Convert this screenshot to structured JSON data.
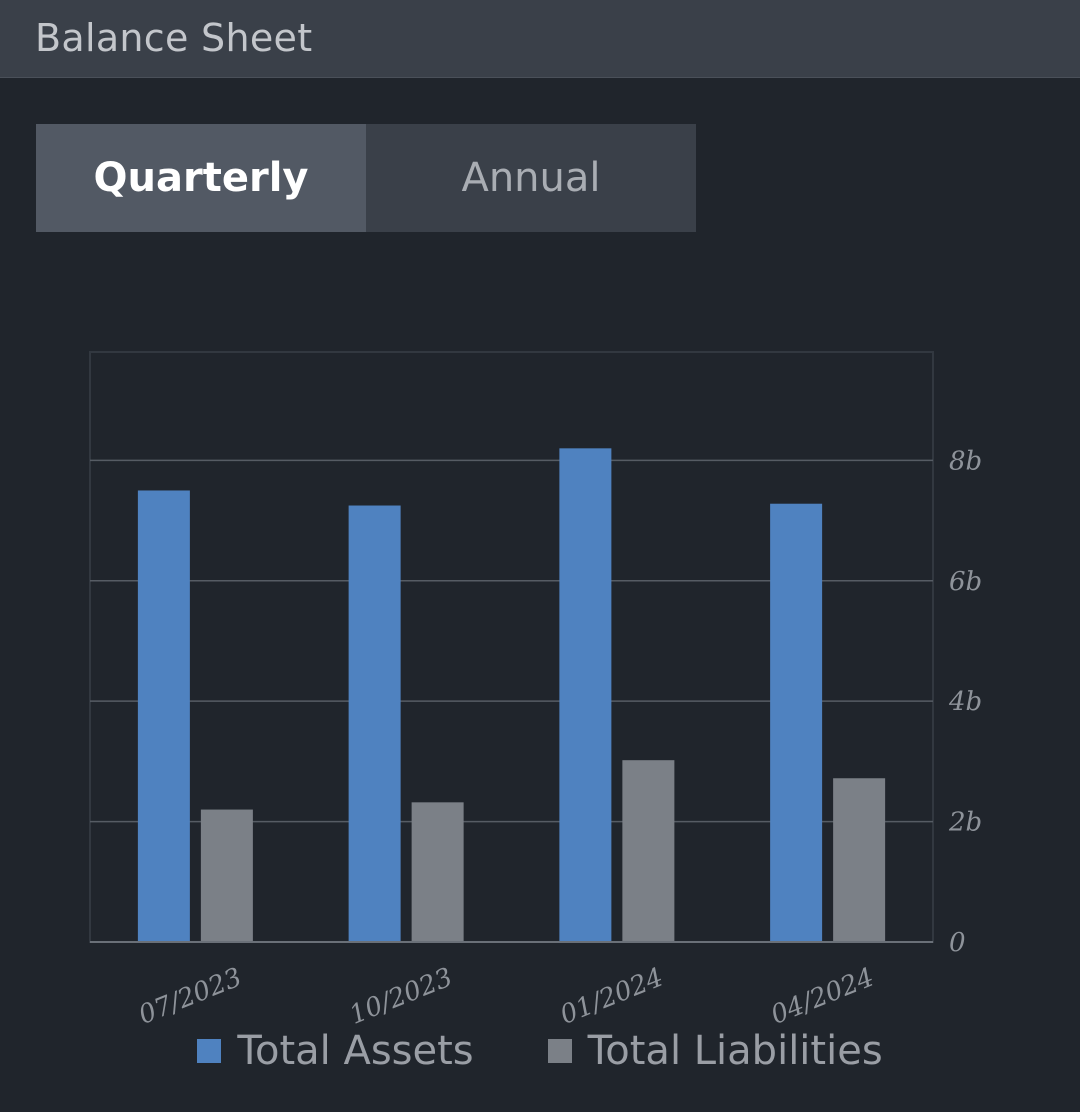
{
  "header": {
    "title": "Balance Sheet"
  },
  "toggle": {
    "options": [
      {
        "label": "Quarterly",
        "active": true
      },
      {
        "label": "Annual",
        "active": false
      }
    ]
  },
  "colors": {
    "assets": "#4f82c0",
    "liabilities": "#7b8087",
    "background": "#20252c",
    "gridline": "#565c64"
  },
  "chart_data": {
    "type": "bar",
    "categories": [
      "07/2023",
      "10/2023",
      "01/2024",
      "04/2024"
    ],
    "series": [
      {
        "name": "Total Assets",
        "values": [
          7.5,
          7.25,
          8.2,
          7.28
        ]
      },
      {
        "name": "Total Liabilities",
        "values": [
          2.2,
          2.32,
          3.02,
          2.72
        ]
      }
    ],
    "yticks": [
      {
        "value": 0,
        "label": "0"
      },
      {
        "value": 2,
        "label": "2b"
      },
      {
        "value": 4,
        "label": "4b"
      },
      {
        "value": 6,
        "label": "6b"
      },
      {
        "value": 8,
        "label": "8b"
      }
    ],
    "ylim": [
      0,
      9.8
    ],
    "grid": true,
    "legend_position": "bottom"
  }
}
